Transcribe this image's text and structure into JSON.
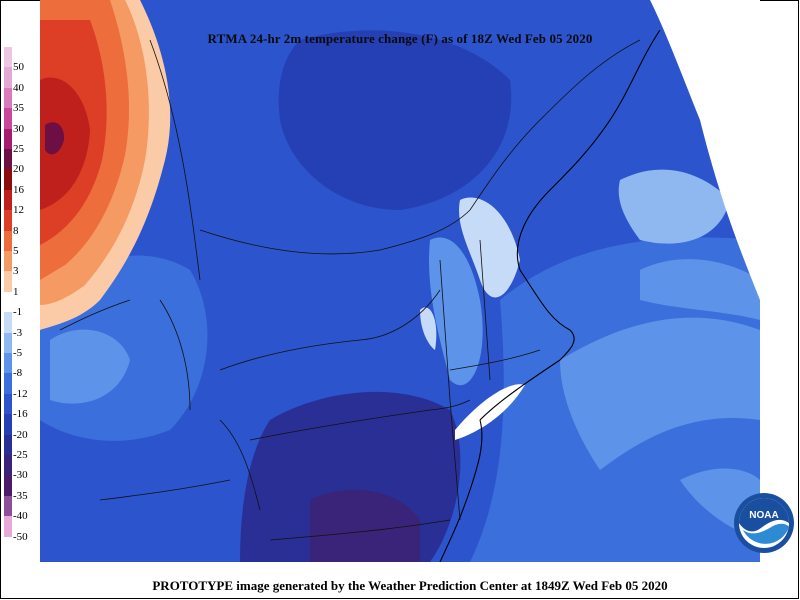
{
  "map": {
    "title": "RTMA 24-hr 2m temperature change (F) as of 18Z Wed Feb 05 2020"
  },
  "legend": {
    "unit": "F",
    "entries": [
      {
        "label": "50",
        "color": "#ecc6e3"
      },
      {
        "label": "40",
        "color": "#e4a8d4"
      },
      {
        "label": "35",
        "color": "#d97bba"
      },
      {
        "label": "30",
        "color": "#c9489c"
      },
      {
        "label": "25",
        "color": "#a71c6f"
      },
      {
        "label": "20",
        "color": "#6e0f44"
      },
      {
        "label": "16",
        "color": "#8c0c0c"
      },
      {
        "label": "12",
        "color": "#c0201c"
      },
      {
        "label": "8",
        "color": "#dc3f26"
      },
      {
        "label": "5",
        "color": "#ed6d3c"
      },
      {
        "label": "3",
        "color": "#f59a63"
      },
      {
        "label": "1",
        "color": "#fbcaa6"
      },
      {
        "label": "-1",
        "color": "#ffffff"
      },
      {
        "label": "-3",
        "color": "#c6dbf7"
      },
      {
        "label": "-5",
        "color": "#8fb8f0"
      },
      {
        "label": "-8",
        "color": "#5d93e8"
      },
      {
        "label": "-12",
        "color": "#3b6fdc"
      },
      {
        "label": "-16",
        "color": "#2b54cd"
      },
      {
        "label": "-20",
        "color": "#2440b4"
      },
      {
        "label": "-25",
        "color": "#2a2f96"
      },
      {
        "label": "-30",
        "color": "#3a2479"
      },
      {
        "label": "-35",
        "color": "#4d1b6b"
      },
      {
        "label": "-40",
        "color": "#8e4e99"
      },
      {
        "label": "-50",
        "color": "#e8a9d8"
      }
    ]
  },
  "footer": {
    "text": "PROTOTYPE image generated by the Weather Prediction Center at 1849Z Wed Feb 05 2020"
  },
  "logo": {
    "text": "NOAA",
    "icon": "noaa-logo-icon"
  }
}
